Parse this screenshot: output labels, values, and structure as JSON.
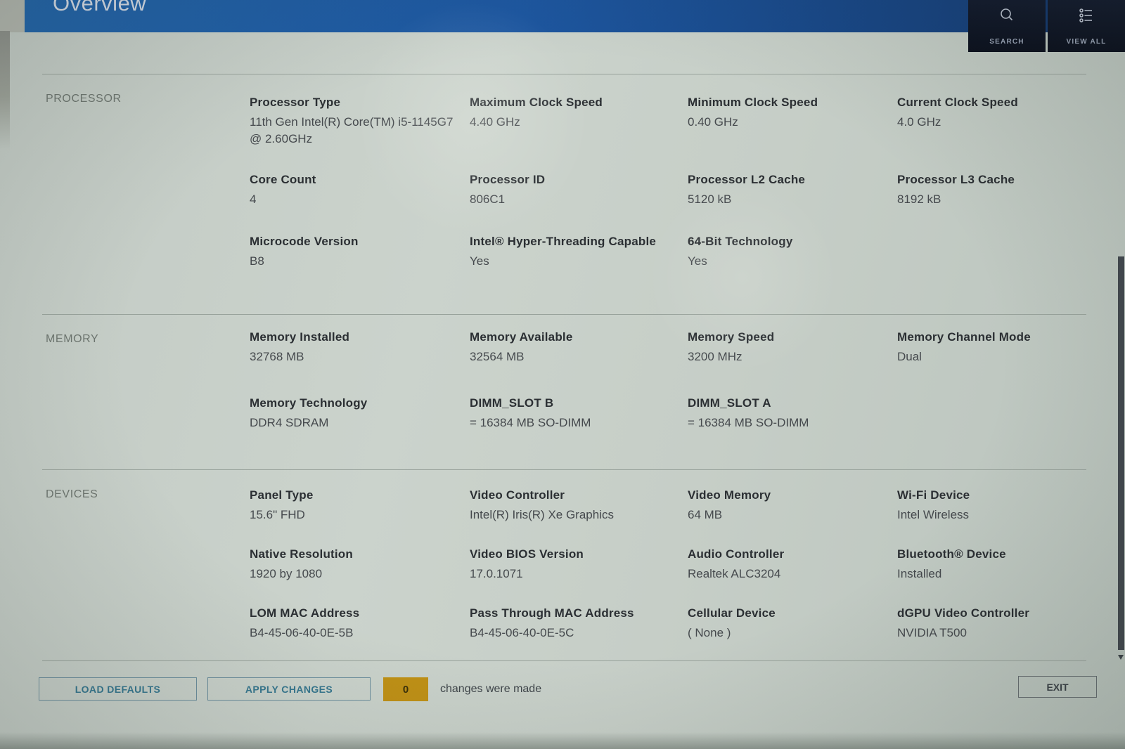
{
  "header": {
    "title": "Overview",
    "search_label": "SEARCH",
    "view_all_label": "VIEW ALL"
  },
  "sections": [
    {
      "title": "PROCESSOR",
      "rows": [
        [
          {
            "label": "Processor Type",
            "value": "11th Gen Intel(R) Core(TM) i5-1145G7 @ 2.60GHz"
          },
          {
            "label": "Maximum Clock Speed",
            "value": "4.40 GHz"
          },
          {
            "label": "Minimum Clock Speed",
            "value": "0.40 GHz"
          },
          {
            "label": "Current Clock Speed",
            "value": "4.0 GHz"
          }
        ],
        [
          {
            "label": "Core Count",
            "value": "4"
          },
          {
            "label": "Processor ID",
            "value": "806C1"
          },
          {
            "label": "Processor L2 Cache",
            "value": "5120 kB"
          },
          {
            "label": "Processor L3 Cache",
            "value": "8192 kB"
          }
        ],
        [
          {
            "label": "Microcode Version",
            "value": "B8"
          },
          {
            "label": "Intel® Hyper-Threading Capable",
            "value": "Yes"
          },
          {
            "label": "64-Bit Technology",
            "value": "Yes"
          }
        ]
      ]
    },
    {
      "title": "MEMORY",
      "rows": [
        [
          {
            "label": "Memory Installed",
            "value": "32768 MB"
          },
          {
            "label": "Memory Available",
            "value": "32564 MB"
          },
          {
            "label": "Memory Speed",
            "value": "3200 MHz"
          },
          {
            "label": "Memory Channel Mode",
            "value": "Dual"
          }
        ],
        [
          {
            "label": "Memory Technology",
            "value": "DDR4 SDRAM"
          },
          {
            "label": "DIMM_SLOT B",
            "value": "= 16384 MB SO-DIMM"
          },
          {
            "label": "DIMM_SLOT A",
            "value": "= 16384 MB SO-DIMM"
          }
        ]
      ]
    },
    {
      "title": "DEVICES",
      "rows": [
        [
          {
            "label": "Panel Type",
            "value": "15.6\" FHD"
          },
          {
            "label": "Video Controller",
            "value": "Intel(R) Iris(R) Xe Graphics"
          },
          {
            "label": "Video Memory",
            "value": "64 MB"
          },
          {
            "label": "Wi-Fi Device",
            "value": "Intel Wireless"
          }
        ],
        [
          {
            "label": "Native Resolution",
            "value": "1920 by 1080"
          },
          {
            "label": "Video BIOS Version",
            "value": "17.0.1071"
          },
          {
            "label": "Audio Controller",
            "value": "Realtek ALC3204"
          },
          {
            "label": "Bluetooth® Device",
            "value": "Installed"
          }
        ],
        [
          {
            "label": "LOM MAC Address",
            "value": "B4-45-06-40-0E-5B"
          },
          {
            "label": "Pass Through MAC Address",
            "value": "B4-45-06-40-0E-5C"
          },
          {
            "label": "Cellular Device",
            "value": "( None )"
          },
          {
            "label": "dGPU Video Controller",
            "value": "NVIDIA T500"
          }
        ]
      ]
    }
  ],
  "footer": {
    "load_defaults_label": "LOAD DEFAULTS",
    "apply_changes_label": "APPLY CHANGES",
    "changes_count": "0",
    "changes_message": "changes were made",
    "exit_label": "EXIT"
  },
  "colors": {
    "header_blue": "#1d57a1",
    "header_blue_dark": "#123161",
    "top_button_bg": "#0b101d",
    "accent_amber": "#bf9016",
    "button_teal": "#36768e",
    "background": "#c6cec7"
  }
}
